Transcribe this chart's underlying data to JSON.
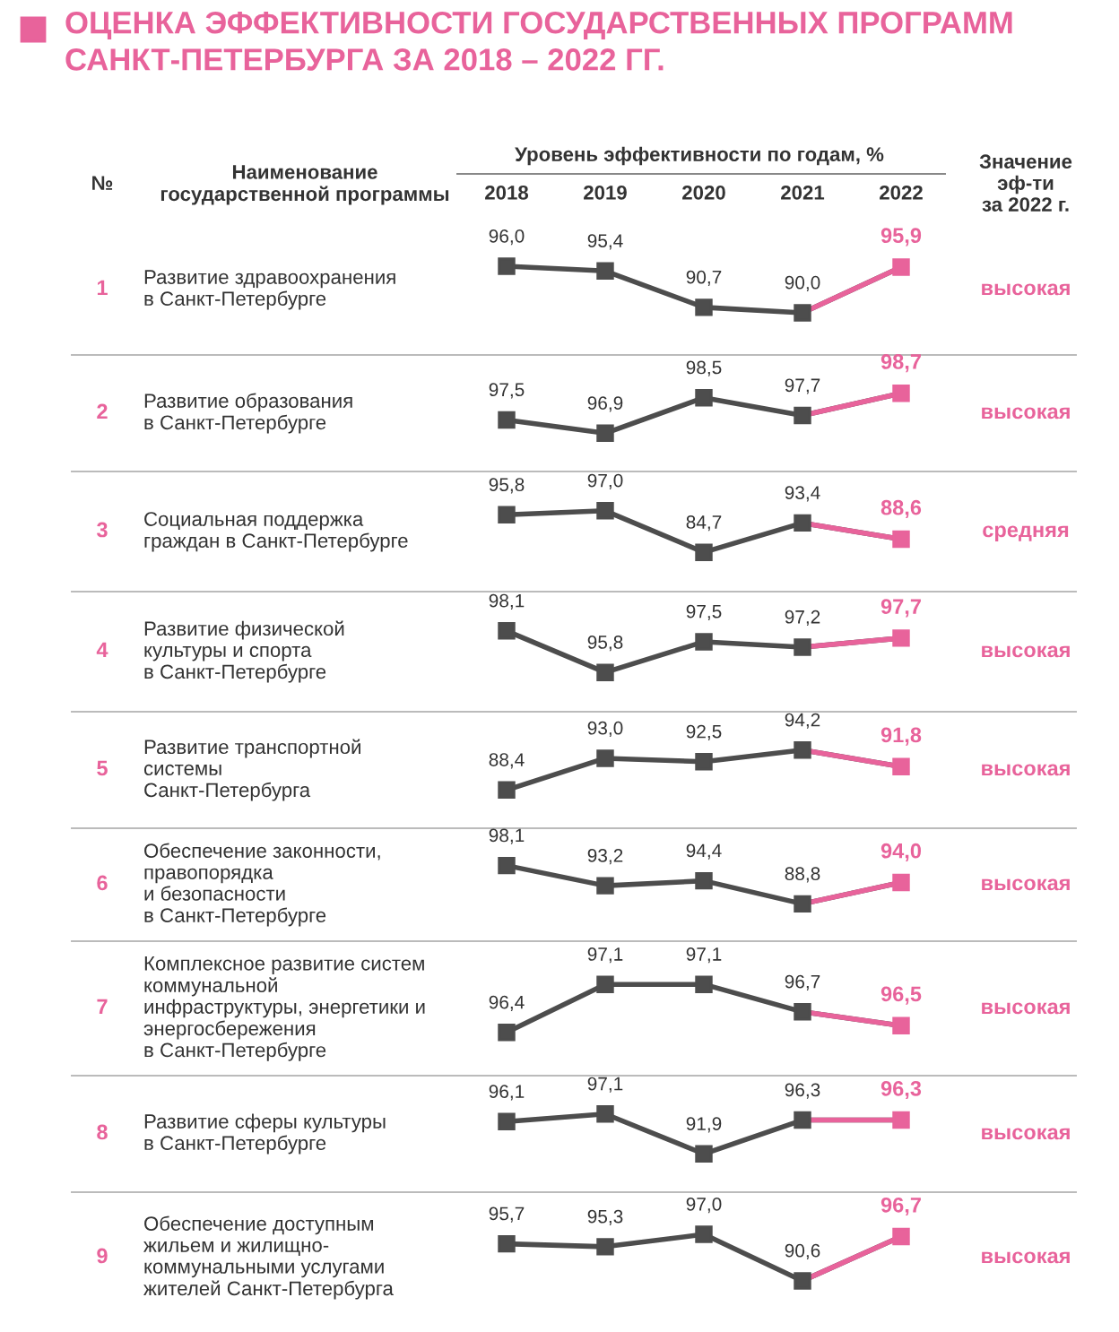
{
  "chart_data": [
    {
      "type": "line",
      "title": "ОЦЕНКА ЭФФЕКТИВНОСТИ ГОСУДАРСТВЕННЫХ ПРОГРАММ\nСАНКТ-ПЕТЕРБУРГА ЗА 2018 – 2022 ГГ.",
      "xlabel": "Уровень эффективности по годам, %",
      "categories": [
        "2018",
        "2019",
        "2020",
        "2021",
        "2022"
      ],
      "tick_labels": "x",
      "marker": "square",
      "values": [
        96.0,
        95.4,
        90.7,
        90.0,
        95.9
      ],
      "value_labels": [
        "96,0",
        "95,4",
        "90,7",
        "90,0",
        "95,9"
      ],
      "colors": [
        "#4d4d4d",
        "#4d4d4d",
        "#4d4d4d",
        "#4d4d4d",
        "#e8639b"
      ],
      "annotations": [
        "1",
        "Развитие здравоохранения\nв Санкт-Петербурге",
        "высокая",
        "№",
        "Наименование\nгосударственной программы",
        "Значение\nэф-ти\nза 2022 г."
      ]
    },
    {
      "type": "line",
      "categories": [
        null,
        null,
        null,
        null,
        null
      ],
      "tick_labels": false,
      "marker": "square",
      "values": [
        97.5,
        96.9,
        98.5,
        97.7,
        98.7
      ],
      "value_labels": [
        "97,5",
        "96,9",
        "98,5",
        "97,7",
        "98,7"
      ],
      "colors": [
        "#4d4d4d",
        "#4d4d4d",
        "#4d4d4d",
        "#4d4d4d",
        "#e8639b"
      ],
      "annotations": [
        "2",
        "Развитие образования\nв Санкт-Петербурге",
        "высокая"
      ]
    },
    {
      "type": "line",
      "categories": [
        null,
        null,
        null,
        null,
        null
      ],
      "tick_labels": false,
      "marker": "square",
      "values": [
        95.8,
        97.0,
        84.7,
        93.4,
        88.6
      ],
      "value_labels": [
        "95,8",
        "97,0",
        "84,7",
        "93,4",
        "88,6"
      ],
      "colors": [
        "#4d4d4d",
        "#4d4d4d",
        "#4d4d4d",
        "#4d4d4d",
        "#e8639b"
      ],
      "annotations": [
        "3",
        "Социальная поддержка\nграждан в Санкт-Петербурге",
        "средняя"
      ]
    },
    {
      "type": "line",
      "categories": [
        null,
        null,
        null,
        null,
        null
      ],
      "tick_labels": false,
      "marker": "square",
      "values": [
        98.1,
        95.8,
        97.5,
        97.2,
        97.7
      ],
      "value_labels": [
        "98,1",
        "95,8",
        "97,5",
        "97,2",
        "97,7"
      ],
      "colors": [
        "#4d4d4d",
        "#4d4d4d",
        "#4d4d4d",
        "#4d4d4d",
        "#e8639b"
      ],
      "annotations": [
        "4",
        "Развитие физической\nкультуры и спорта\nв Санкт-Петербурге",
        "высокая"
      ]
    },
    {
      "type": "line",
      "categories": [
        null,
        null,
        null,
        null,
        null
      ],
      "tick_labels": false,
      "marker": "square",
      "values": [
        88.4,
        93.0,
        92.5,
        94.2,
        91.8
      ],
      "value_labels": [
        "88,4",
        "93,0",
        "92,5",
        "94,2",
        "91,8"
      ],
      "colors": [
        "#4d4d4d",
        "#4d4d4d",
        "#4d4d4d",
        "#4d4d4d",
        "#e8639b"
      ],
      "annotations": [
        "5",
        "Развитие транспортной\nсистемы\nСанкт-Петербурга",
        "высокая"
      ]
    },
    {
      "type": "line",
      "categories": [
        null,
        null,
        null,
        null,
        null
      ],
      "tick_labels": false,
      "marker": "square",
      "values": [
        98.1,
        93.2,
        94.4,
        88.8,
        94.0
      ],
      "value_labels": [
        "98,1",
        "93,2",
        "94,4",
        "88,8",
        "94,0"
      ],
      "colors": [
        "#4d4d4d",
        "#4d4d4d",
        "#4d4d4d",
        "#4d4d4d",
        "#e8639b"
      ],
      "annotations": [
        "6",
        "Обеспечение законности,\nправопорядка\nи безопасности\nв Санкт-Петербурге",
        "высокая"
      ]
    },
    {
      "type": "line",
      "categories": [
        null,
        null,
        null,
        null,
        null
      ],
      "tick_labels": false,
      "marker": "square",
      "values": [
        96.4,
        97.1,
        97.1,
        96.7,
        96.5
      ],
      "value_labels": [
        "96,4",
        "97,1",
        "97,1",
        "96,7",
        "96,5"
      ],
      "colors": [
        "#4d4d4d",
        "#4d4d4d",
        "#4d4d4d",
        "#4d4d4d",
        "#e8639b"
      ],
      "annotations": [
        "7",
        "Комплексное развитие систем\nкоммунальной\nинфраструктуры, энергетики и\nэнергосбережения\nв Санкт-Петербурге",
        "высокая"
      ]
    },
    {
      "type": "line",
      "categories": [
        null,
        null,
        null,
        null,
        null
      ],
      "tick_labels": false,
      "marker": "square",
      "values": [
        96.1,
        97.1,
        91.9,
        96.3,
        96.3
      ],
      "value_labels": [
        "96,1",
        "97,1",
        "91,9",
        "96,3",
        "96,3"
      ],
      "colors": [
        "#4d4d4d",
        "#4d4d4d",
        "#4d4d4d",
        "#4d4d4d",
        "#e8639b"
      ],
      "annotations": [
        "8",
        "Развитие сферы культуры\nв Санкт-Петербурге",
        "высокая"
      ]
    },
    {
      "type": "line",
      "categories": [
        null,
        null,
        null,
        null,
        null
      ],
      "tick_labels": false,
      "marker": "square",
      "values": [
        95.7,
        95.3,
        97.0,
        90.6,
        96.7
      ],
      "value_labels": [
        "95,7",
        "95,3",
        "97,0",
        "90,6",
        "96,7"
      ],
      "colors": [
        "#4d4d4d",
        "#4d4d4d",
        "#4d4d4d",
        "#4d4d4d",
        "#e8639b"
      ],
      "annotations": [
        "9",
        "Обеспечение доступным\nжильем и жилищно-\nкоммунальными услугами\nжителей Санкт-Петербурга",
        "высокая"
      ]
    }
  ]
}
